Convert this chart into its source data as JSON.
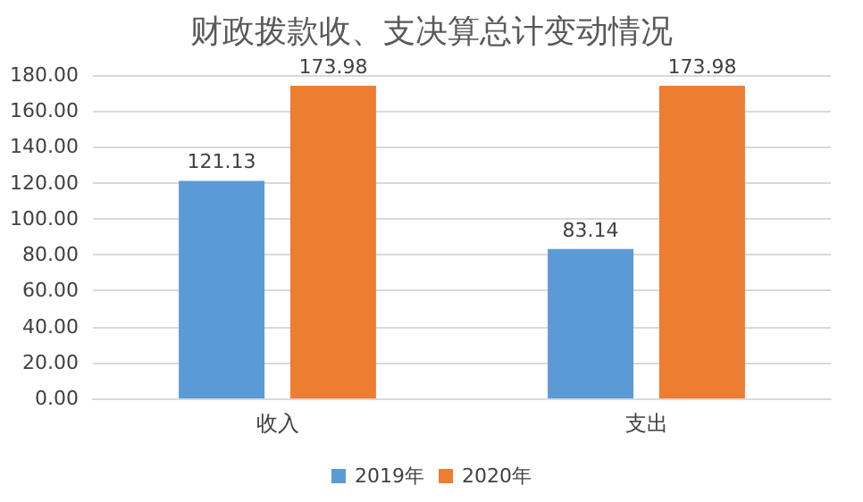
{
  "chart_data": {
    "type": "bar",
    "title": "财政拨款收、支决算总计变动情况",
    "categories": [
      "收入",
      "支出"
    ],
    "series": [
      {
        "name": "2019年",
        "color": "#5b9bd5",
        "values": [
          121.13,
          83.14
        ]
      },
      {
        "name": "2020年",
        "color": "#ed7d31",
        "values": [
          173.98,
          173.98
        ]
      }
    ],
    "ylim": [
      0,
      180
    ],
    "yticks": [
      {
        "value": 0,
        "label": "0.00"
      },
      {
        "value": 20,
        "label": "20.00"
      },
      {
        "value": 40,
        "label": "40.00"
      },
      {
        "value": 60,
        "label": "60.00"
      },
      {
        "value": 80,
        "label": "80.00"
      },
      {
        "value": 100,
        "label": "100.00"
      },
      {
        "value": 120,
        "label": "120.00"
      },
      {
        "value": 140,
        "label": "140.00"
      },
      {
        "value": 160,
        "label": "160.00"
      },
      {
        "value": 180,
        "label": "180.00"
      }
    ],
    "grid": "y",
    "legend": "bottom",
    "data_labels": true
  }
}
